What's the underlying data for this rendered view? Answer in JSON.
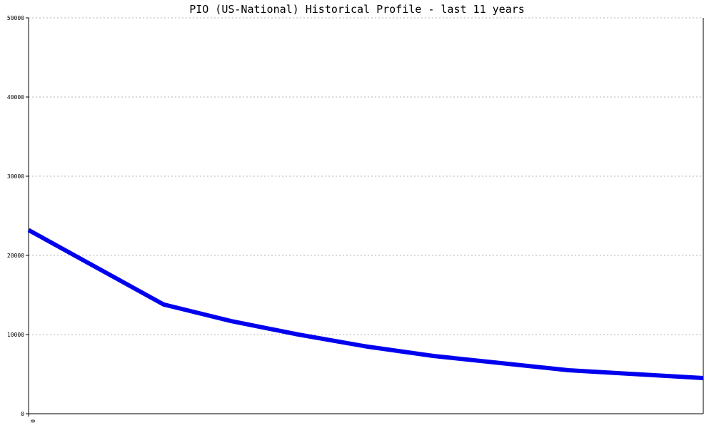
{
  "chart_data": {
    "type": "line",
    "title": "PIO (US-National) Historical Profile - last 11 years",
    "xlabel": "",
    "ylabel": "",
    "x_ticks": [
      "0"
    ],
    "y_ticks": [
      "0",
      "10000",
      "20000",
      "30000",
      "40000",
      "50000"
    ],
    "ylim": [
      0,
      50000
    ],
    "grid": "horizontal dotted",
    "legend": "none",
    "series": [
      {
        "color": "#0000ee",
        "values": [
          23200,
          18500,
          13800,
          11700,
          10000,
          8500,
          7300,
          6400,
          5500,
          5000,
          4500
        ]
      }
    ]
  }
}
